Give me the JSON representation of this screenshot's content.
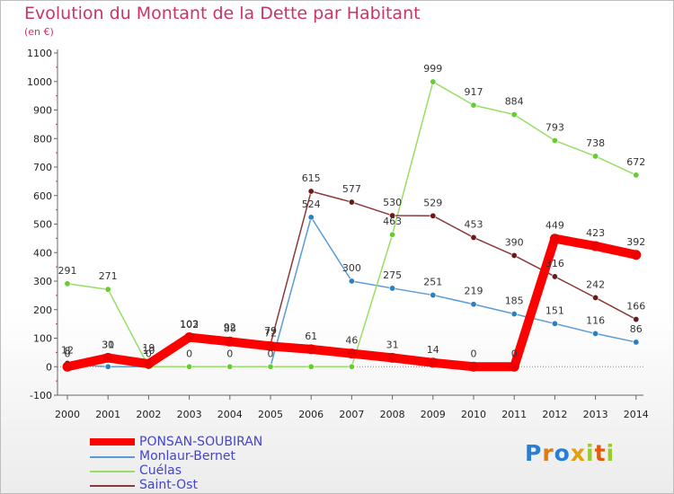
{
  "title": "Evolution du Montant de la Dette par Habitant",
  "subtitle": "(en €)",
  "logo": {
    "text": "Proxiti",
    "letters": [
      "P",
      "r",
      "o",
      "x",
      "i",
      "t",
      "i"
    ],
    "colors": [
      "#2a7fd4",
      "#e07a10",
      "#2a7fd4",
      "#e0a010",
      "#9acb2a",
      "#e05a10",
      "#9acb2a"
    ]
  },
  "chart_data": {
    "type": "line",
    "title": "Evolution du Montant de la Dette par Habitant",
    "subtitle": "(en €)",
    "x": [
      "2000",
      "2001",
      "2002",
      "2003",
      "2004",
      "2005",
      "2006",
      "2007",
      "2008",
      "2009",
      "2010",
      "2011",
      "2012",
      "2013",
      "2014"
    ],
    "ylim": [
      -100,
      1100
    ],
    "yticks": [
      -100,
      0,
      100,
      200,
      300,
      400,
      500,
      600,
      700,
      800,
      900,
      1000,
      1100
    ],
    "grid": false,
    "legend_position": "bottom-left",
    "series": [
      {
        "name": "Monlaur-Bernet",
        "color": "#5b9bd5",
        "dot": "#2f7fbf",
        "values": [
          8,
          0,
          0,
          0,
          0,
          0,
          524,
          300,
          275,
          251,
          219,
          185,
          151,
          116,
          86
        ],
        "labels": [
          "8",
          "",
          "0",
          "0",
          "0",
          "0",
          "524",
          "300",
          "275",
          "251",
          "219",
          "185",
          "151",
          "116",
          "86"
        ]
      },
      {
        "name": "Cuélas",
        "color": "#99dd66",
        "dot": "#66cc33",
        "values": [
          291,
          271,
          0,
          0,
          0,
          0,
          0,
          0,
          463,
          999,
          917,
          884,
          793,
          738,
          672
        ],
        "labels": [
          "291",
          "271",
          "",
          "",
          "",
          "",
          "",
          "",
          "463",
          "999",
          "917",
          "884",
          "793",
          "738",
          "672"
        ]
      },
      {
        "name": "Saint-Ost",
        "color": "#8b3a3a",
        "dot": "#6b1a1a",
        "values": [
          12,
          30,
          19,
          102,
          92,
          79,
          615,
          577,
          530,
          529,
          453,
          390,
          316,
          242,
          166
        ],
        "labels": [
          "12",
          "30",
          "19",
          "102",
          "92",
          "79",
          "615",
          "577",
          "530",
          "529",
          "453",
          "390",
          "316",
          "242",
          "166"
        ]
      },
      {
        "name": "PONSAN-SOUBIRAN",
        "color": "#ff0000",
        "dot": "#ee0000",
        "values": [
          0,
          31,
          10,
          103,
          88,
          72,
          61,
          46,
          31,
          14,
          0,
          0,
          449,
          423,
          392
        ],
        "labels": [
          "0",
          "31",
          "10",
          "103",
          "88",
          "72",
          "61",
          "46",
          "31",
          "14",
          "0",
          "0",
          "449",
          "423",
          "392"
        ]
      }
    ],
    "legend": [
      "PONSAN-SOUBIRAN",
      "Monlaur-Bernet",
      "Cuélas",
      "Saint-Ost"
    ]
  }
}
